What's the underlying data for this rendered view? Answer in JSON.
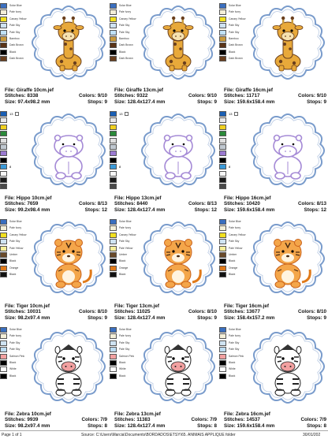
{
  "footer": {
    "page": "Page 1 of 1",
    "source": "Source: C:\\Users\\Marcia\\Documents\\BORDADOS\\ETSY\\65. ANIMAIS APPLIQUE folder",
    "date": "30/01/202"
  },
  "palettes": {
    "giraffe": [
      {
        "name": "Solar Blue",
        "color": "#3a6fc0"
      },
      {
        "name": "Pale Ivory",
        "color": "#f4efd8"
      },
      {
        "name": "Canary Yellow",
        "color": "#f2e020"
      },
      {
        "name": "Pale Sky",
        "color": "#cfe3f2"
      },
      {
        "name": "Pale Sky",
        "color": "#bfe0f5"
      },
      {
        "name": "Bamboo",
        "color": "#c99a3c"
      },
      {
        "name": "Dark Brown",
        "color": "#5a3418"
      },
      {
        "name": "Black",
        "color": "#000000"
      },
      {
        "name": "Dark Brown",
        "color": "#6a3f1e"
      }
    ],
    "hippo": [
      {
        "num": "13",
        "color": "#1a5fb4",
        "check": true
      },
      {
        "num": "",
        "color": "#e8e8e8"
      },
      {
        "num": "",
        "color": "#f0d020"
      },
      {
        "num": "",
        "color": "#2a8a3a"
      },
      {
        "num": "",
        "color": "#e0e0e0"
      },
      {
        "num": "",
        "color": "#c0c8d0"
      },
      {
        "num": "",
        "color": "#9a7ad0"
      },
      {
        "num": "",
        "color": "#000000"
      },
      {
        "num": "8",
        "color": "#3a9ad8"
      },
      {
        "num": "",
        "color": "#f6f6f6"
      },
      {
        "num": "",
        "color": "#1a1a1a"
      },
      {
        "num": "",
        "color": "#4a4a4a"
      }
    ],
    "tiger": [
      {
        "name": "Solar Blue",
        "color": "#3a6fc0"
      },
      {
        "name": "Pale Ivory",
        "color": "#f4efd8"
      },
      {
        "name": "Canary Yellow",
        "color": "#f2e020"
      },
      {
        "name": "Pale Sky",
        "color": "#cfe3f2"
      },
      {
        "name": "Pale Yellow",
        "color": "#f6ee9a"
      },
      {
        "name": "Umber",
        "color": "#6a4a2a"
      },
      {
        "name": "Black",
        "color": "#000000"
      },
      {
        "name": "Orange",
        "color": "#e07a1a"
      },
      {
        "name": "Black",
        "color": "#111111"
      }
    ],
    "zebra": [
      {
        "name": "Solar Blue",
        "color": "#3a6fc0"
      },
      {
        "name": "Pale Ivory",
        "color": "#f4efd8"
      },
      {
        "name": "Pale Sky",
        "color": "#cfe3f2"
      },
      {
        "name": "Pale Sky",
        "color": "#bcdcf2"
      },
      {
        "name": "Salmon Pink",
        "color": "#f2a0a0"
      },
      {
        "name": "Black",
        "color": "#000000"
      },
      {
        "name": "White",
        "color": "#ffffff"
      },
      {
        "name": "Black",
        "color": "#000000"
      }
    ]
  },
  "cells": [
    {
      "animal": "giraffe",
      "file": "File: Giraffe 10cm.jef",
      "stitches": "Stitches: 8338",
      "size": "Size: 97.4x98.2 mm",
      "colors": "Colors: 9/10",
      "stops": "Stops: 9"
    },
    {
      "animal": "giraffe",
      "file": "File: Giraffe 13cm.jef",
      "stitches": "Stitches: 9322",
      "size": "Size: 128.4x127.4 mm",
      "colors": "Colors: 9/10",
      "stops": "Stops: 9"
    },
    {
      "animal": "giraffe",
      "file": "File: Giraffe 16cm.jef",
      "stitches": "Stitches: 11717",
      "size": "Size: 159.6x158.4 mm",
      "colors": "Colors: 9/10",
      "stops": "Stops: 9"
    },
    {
      "animal": "hippo",
      "file": "File: Hippo 10cm.jef",
      "stitches": "Stitches: 7659",
      "size": "Size: 99.2x98.4 mm",
      "colors": "Colors: 8/13",
      "stops": "Stops: 12"
    },
    {
      "animal": "hippo",
      "file": "File: Hippo 13cm.jef",
      "stitches": "Stitches: 8440",
      "size": "Size: 128.4x127.4 mm",
      "colors": "Colors: 8/13",
      "stops": "Stops: 12"
    },
    {
      "animal": "hippo",
      "file": "File: Hippo 16cm.jef",
      "stitches": "Stitches: 10420",
      "size": "Size: 159.6x158.4 mm",
      "colors": "Colors: 8/13",
      "stops": "Stops: 12"
    },
    {
      "animal": "tiger",
      "file": "File: Tiger 10cm.jef",
      "stitches": "Stitches: 10031",
      "size": "Size: 98.2x97.4 mm",
      "colors": "Colors: 8/10",
      "stops": "Stops: 9"
    },
    {
      "animal": "tiger",
      "file": "File: Tiger 13cm.jef",
      "stitches": "Stitches: 11025",
      "size": "Size: 128.4x127.4 mm",
      "colors": "Colors: 8/10",
      "stops": "Stops: 9"
    },
    {
      "animal": "tiger",
      "file": "File: Tiger 16cm.jef",
      "stitches": "Stitches: 13677",
      "size": "Size: 158.4x157.2 mm",
      "colors": "Colors: 8/10",
      "stops": "Stops: 9"
    },
    {
      "animal": "zebra",
      "file": "File: Zebra 10cm.jef",
      "stitches": "Stitches: 9939",
      "size": "Size: 98.2x97.4 mm",
      "colors": "Colors: 7/9",
      "stops": "Stops: 8"
    },
    {
      "animal": "zebra",
      "file": "File: Zebra 13cm.jef",
      "stitches": "Stitches: 11383",
      "size": "Size: 128.4x127.4 mm",
      "colors": "Colors: 7/9",
      "stops": "Stops: 8"
    },
    {
      "animal": "zebra",
      "file": "File: Zebra 16cm.jef",
      "stitches": "Stitches: 14537",
      "size": "Size: 159.6x158.4 mm",
      "colors": "Colors: 7/9",
      "stops": "Stops: 8"
    }
  ]
}
